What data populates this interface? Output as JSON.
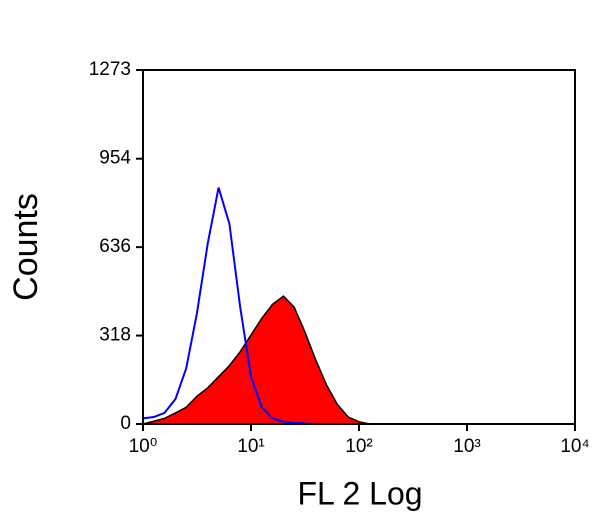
{
  "chart_data": {
    "type": "area",
    "xlabel": "FL 2 Log",
    "ylabel": "Counts",
    "xscale": "log",
    "xlim": [
      1,
      10000
    ],
    "xticks": [
      {
        "value": 1,
        "label": "10⁰"
      },
      {
        "value": 10,
        "label": "10¹"
      },
      {
        "value": 100,
        "label": "10²"
      },
      {
        "value": 1000,
        "label": "10³"
      },
      {
        "value": 10000,
        "label": "10⁴"
      }
    ],
    "ylim": [
      0,
      1273
    ],
    "yticks": [
      0,
      318,
      636,
      954,
      1273
    ],
    "x": [
      1,
      1.26,
      1.58,
      2,
      2.51,
      3.16,
      3.98,
      5.01,
      6.31,
      7.94,
      10,
      12.6,
      15.8,
      20,
      25.1,
      31.6,
      39.8,
      50.1,
      63.1,
      79.4,
      100,
      126
    ],
    "series": [
      {
        "name": null,
        "color": "#ff0000",
        "filled": true,
        "values": [
          0,
          10,
          20,
          40,
          60,
          100,
          130,
          170,
          210,
          260,
          320,
          380,
          430,
          460,
          420,
          330,
          230,
          140,
          70,
          25,
          8,
          0
        ]
      },
      {
        "name": null,
        "color": "#0000ff",
        "filled": false,
        "values": [
          20,
          25,
          40,
          90,
          200,
          400,
          650,
          850,
          720,
          420,
          170,
          60,
          20,
          8,
          4,
          2,
          0,
          0,
          0,
          0,
          0,
          0
        ]
      }
    ]
  }
}
